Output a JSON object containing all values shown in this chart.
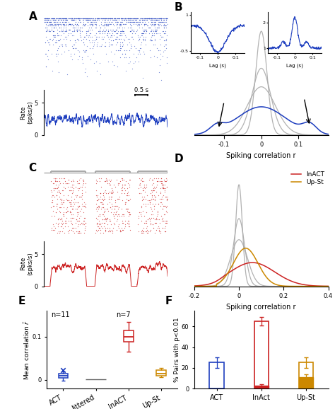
{
  "panel_labels": [
    "A",
    "B",
    "C",
    "D",
    "E",
    "F"
  ],
  "blue_color": "#1E3EBF",
  "red_color": "#CC2222",
  "orange_color": "#CC8800",
  "gray_color": "#AAAAAA",
  "dark_gray": "#666666",
  "ylabel_rate": "Rate\n(spks/s)",
  "xlabel_B": "Spiking correlation r",
  "xlabel_D": "Spiking correlation r",
  "ylabel_E": "Mean correlation $\\bar{r}$",
  "ylabel_F": "% Pairs with p<0.01",
  "scale_bar_label": "0.5 s",
  "n11_text": "n=11",
  "n7_text": "n=7",
  "xticks_B": [
    -0.1,
    0,
    0.1
  ],
  "xtick_labels_B": [
    "-0.1",
    "0",
    "0.1"
  ],
  "xticks_D": [
    -0.2,
    0,
    0.2,
    0.4
  ],
  "xtick_labels_D": [
    "-0.2",
    "0",
    "0.2",
    "0.4"
  ],
  "yticks_E": [
    0,
    0.1
  ],
  "ytick_labels_E": [
    "0",
    "0.1"
  ],
  "yticks_F": [
    0,
    20,
    40,
    60
  ],
  "ytick_labels_F": [
    "0",
    "20",
    "40",
    "60"
  ],
  "F_act_mean": 25,
  "F_act_err": 5,
  "F_inact_mean": 65,
  "F_inact_err": 4,
  "F_inact_low": 3,
  "F_inact_low_err": 1,
  "F_upst_mean": 25,
  "F_upst_err": 5,
  "F_upst_low": 11,
  "F_upst_low_err": 3,
  "bar_labels_F": [
    "ACT",
    "InAct",
    "Up-St"
  ],
  "box_labels_E": [
    "ACT",
    "Jittered",
    "InACT",
    "Up-St"
  ]
}
